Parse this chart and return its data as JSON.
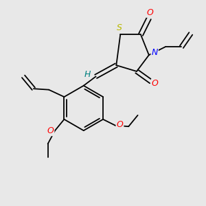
{
  "background_color": "#e8e8e8",
  "bond_color": "#000000",
  "atom_colors": {
    "S": "#b8b800",
    "N": "#0000ff",
    "O": "#ff0000",
    "H": "#008080",
    "C": "#000000"
  },
  "figsize": [
    3.0,
    3.0
  ],
  "dpi": 100,
  "lw": 1.3
}
